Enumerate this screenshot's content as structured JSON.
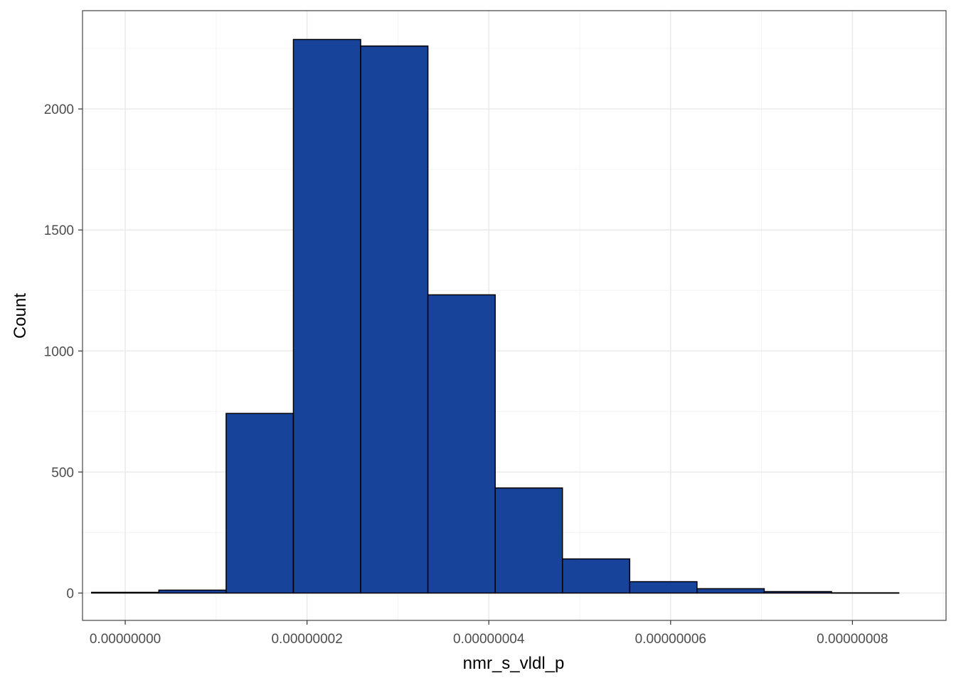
{
  "chart_data": {
    "type": "bar",
    "xlabel": "nmr_s_vldl_p",
    "ylabel": "Count",
    "xlim": [
      -4.7e-09,
      9.03e-08
    ],
    "ylim": [
      -113,
      2406
    ],
    "x_ticks": [
      0,
      2e-08,
      4e-08,
      6e-08,
      8e-08
    ],
    "x_tick_labels": [
      "0.00000000",
      "0.00000002",
      "0.00000004",
      "0.00000006",
      "0.00000008"
    ],
    "y_ticks": [
      0,
      500,
      1000,
      1500,
      2000
    ],
    "y_tick_labels": [
      "0",
      "500",
      "1000",
      "1500",
      "2000"
    ],
    "grid": true,
    "bins": [
      {
        "x0": -3.7e-09,
        "x1": 3.7e-09,
        "count": 3
      },
      {
        "x0": 3.7e-09,
        "x1": 1.11e-08,
        "count": 12
      },
      {
        "x0": 1.11e-08,
        "x1": 1.85e-08,
        "count": 742
      },
      {
        "x0": 1.85e-08,
        "x1": 2.59e-08,
        "count": 2287
      },
      {
        "x0": 2.59e-08,
        "x1": 3.33e-08,
        "count": 2260
      },
      {
        "x0": 3.33e-08,
        "x1": 4.07e-08,
        "count": 1232
      },
      {
        "x0": 4.07e-08,
        "x1": 4.81e-08,
        "count": 434
      },
      {
        "x0": 4.81e-08,
        "x1": 5.55e-08,
        "count": 141
      },
      {
        "x0": 5.55e-08,
        "x1": 6.29e-08,
        "count": 47
      },
      {
        "x0": 6.29e-08,
        "x1": 7.03e-08,
        "count": 18
      },
      {
        "x0": 7.03e-08,
        "x1": 7.77e-08,
        "count": 6
      },
      {
        "x0": 7.77e-08,
        "x1": 8.51e-08,
        "count": 1
      }
    ],
    "colors": {
      "bar_fill": "#18439A",
      "bar_stroke": "#000000",
      "panel_border": "#333333",
      "grid_major": "#EBEBEB",
      "grid_minor": "#F5F5F5"
    }
  }
}
